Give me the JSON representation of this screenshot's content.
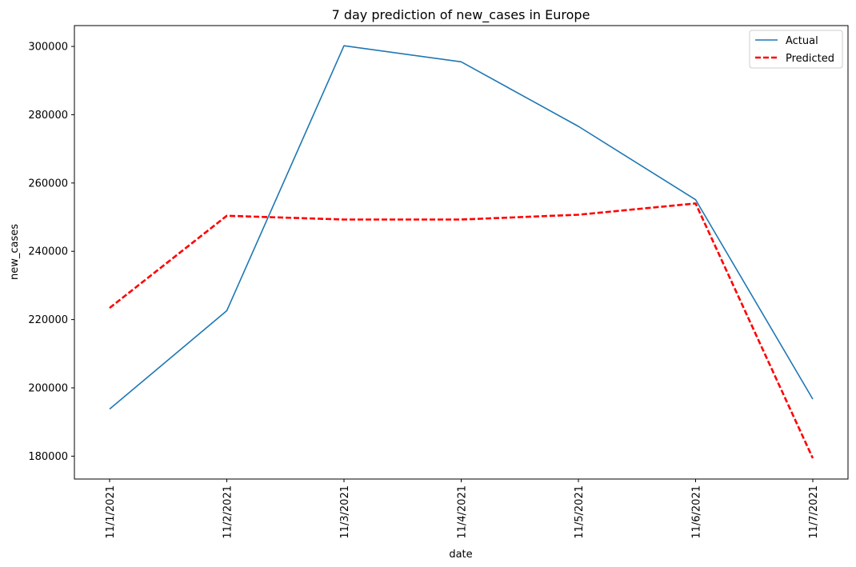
{
  "chart_data": {
    "type": "line",
    "title": "7 day prediction of new_cases in Europe",
    "xlabel": "date",
    "ylabel": "new_cases",
    "categories": [
      "11/1/2021",
      "11/2/2021",
      "11/3/2021",
      "11/4/2021",
      "11/5/2021",
      "11/6/2021",
      "11/7/2021"
    ],
    "series": [
      {
        "name": "Actual",
        "values": [
          193800,
          222600,
          300200,
          295500,
          276600,
          255100,
          196700
        ],
        "color": "#1f77b4",
        "style": "solid"
      },
      {
        "name": "Predicted",
        "values": [
          223400,
          250400,
          249300,
          249300,
          250700,
          254000,
          179400
        ],
        "color": "#ff0000",
        "style": "dashed"
      }
    ],
    "ylim": [
      173300,
      306100
    ],
    "yticks": [
      180000,
      200000,
      220000,
      240000,
      260000,
      280000,
      300000
    ],
    "ytick_labels": [
      "180000",
      "200000",
      "220000",
      "240000",
      "260000",
      "280000",
      "300000"
    ],
    "grid": false,
    "legend_position": "top-right"
  }
}
